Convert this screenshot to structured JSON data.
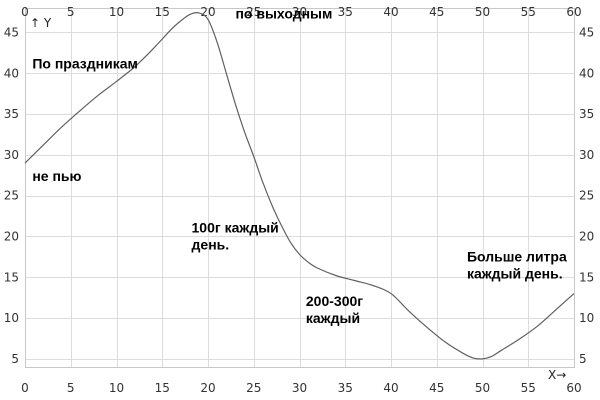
{
  "chart_data": {
    "type": "line",
    "x_axis": {
      "label": "X→",
      "range": [
        0,
        60
      ],
      "ticks": [
        "0",
        "5",
        "10",
        "15",
        "20",
        "25",
        "30",
        "35",
        "40",
        "45",
        "50",
        "55",
        "60"
      ]
    },
    "y_axis": {
      "label": "↑ Y",
      "range": [
        4,
        48
      ],
      "ticks": [
        "5",
        "10",
        "15",
        "20",
        "25",
        "30",
        "35",
        "40",
        "45"
      ]
    },
    "grid": true,
    "series": [
      {
        "color": "#606060",
        "points": [
          [
            0,
            29.0
          ],
          [
            2,
            31.2
          ],
          [
            4,
            33.4
          ],
          [
            6,
            35.4
          ],
          [
            8,
            37.3
          ],
          [
            10,
            39.0
          ],
          [
            12,
            40.8
          ],
          [
            14,
            43.0
          ],
          [
            16,
            45.4
          ],
          [
            17,
            46.4
          ],
          [
            18,
            47.2
          ],
          [
            19,
            47.4
          ],
          [
            20,
            46.6
          ],
          [
            21,
            43.8
          ],
          [
            22,
            40.0
          ],
          [
            23,
            36.2
          ],
          [
            24,
            32.8
          ],
          [
            25,
            29.8
          ],
          [
            26,
            26.6
          ],
          [
            27,
            23.8
          ],
          [
            28,
            21.4
          ],
          [
            29,
            19.3
          ],
          [
            30,
            17.8
          ],
          [
            31,
            16.8
          ],
          [
            32,
            16.1
          ],
          [
            34,
            15.2
          ],
          [
            36,
            14.6
          ],
          [
            38,
            14.0
          ],
          [
            40,
            13.0
          ],
          [
            42,
            10.8
          ],
          [
            44,
            8.8
          ],
          [
            46,
            7.0
          ],
          [
            48,
            5.6
          ],
          [
            49,
            5.1
          ],
          [
            50,
            5.0
          ],
          [
            51,
            5.3
          ],
          [
            52,
            6.0
          ],
          [
            54,
            7.4
          ],
          [
            56,
            9.0
          ],
          [
            58,
            11.0
          ],
          [
            60,
            13.0
          ]
        ]
      }
    ],
    "annotations": [
      {
        "lines": [
          "по выходным"
        ],
        "x": 23.0,
        "y": 46.7
      },
      {
        "lines": [
          "По праздникам"
        ],
        "x": 0.8,
        "y": 40.6
      },
      {
        "lines": [
          "не пью"
        ],
        "x": 0.8,
        "y": 26.8
      },
      {
        "lines": [
          "100г каждый",
          "день."
        ],
        "x": 18.2,
        "y": 20.5
      },
      {
        "lines": [
          "200-300г",
          "каждый"
        ],
        "x": 30.7,
        "y": 11.5
      },
      {
        "lines": [
          "Больше литра",
          "каждый день."
        ],
        "x": 48.3,
        "y": 16.9
      }
    ]
  }
}
